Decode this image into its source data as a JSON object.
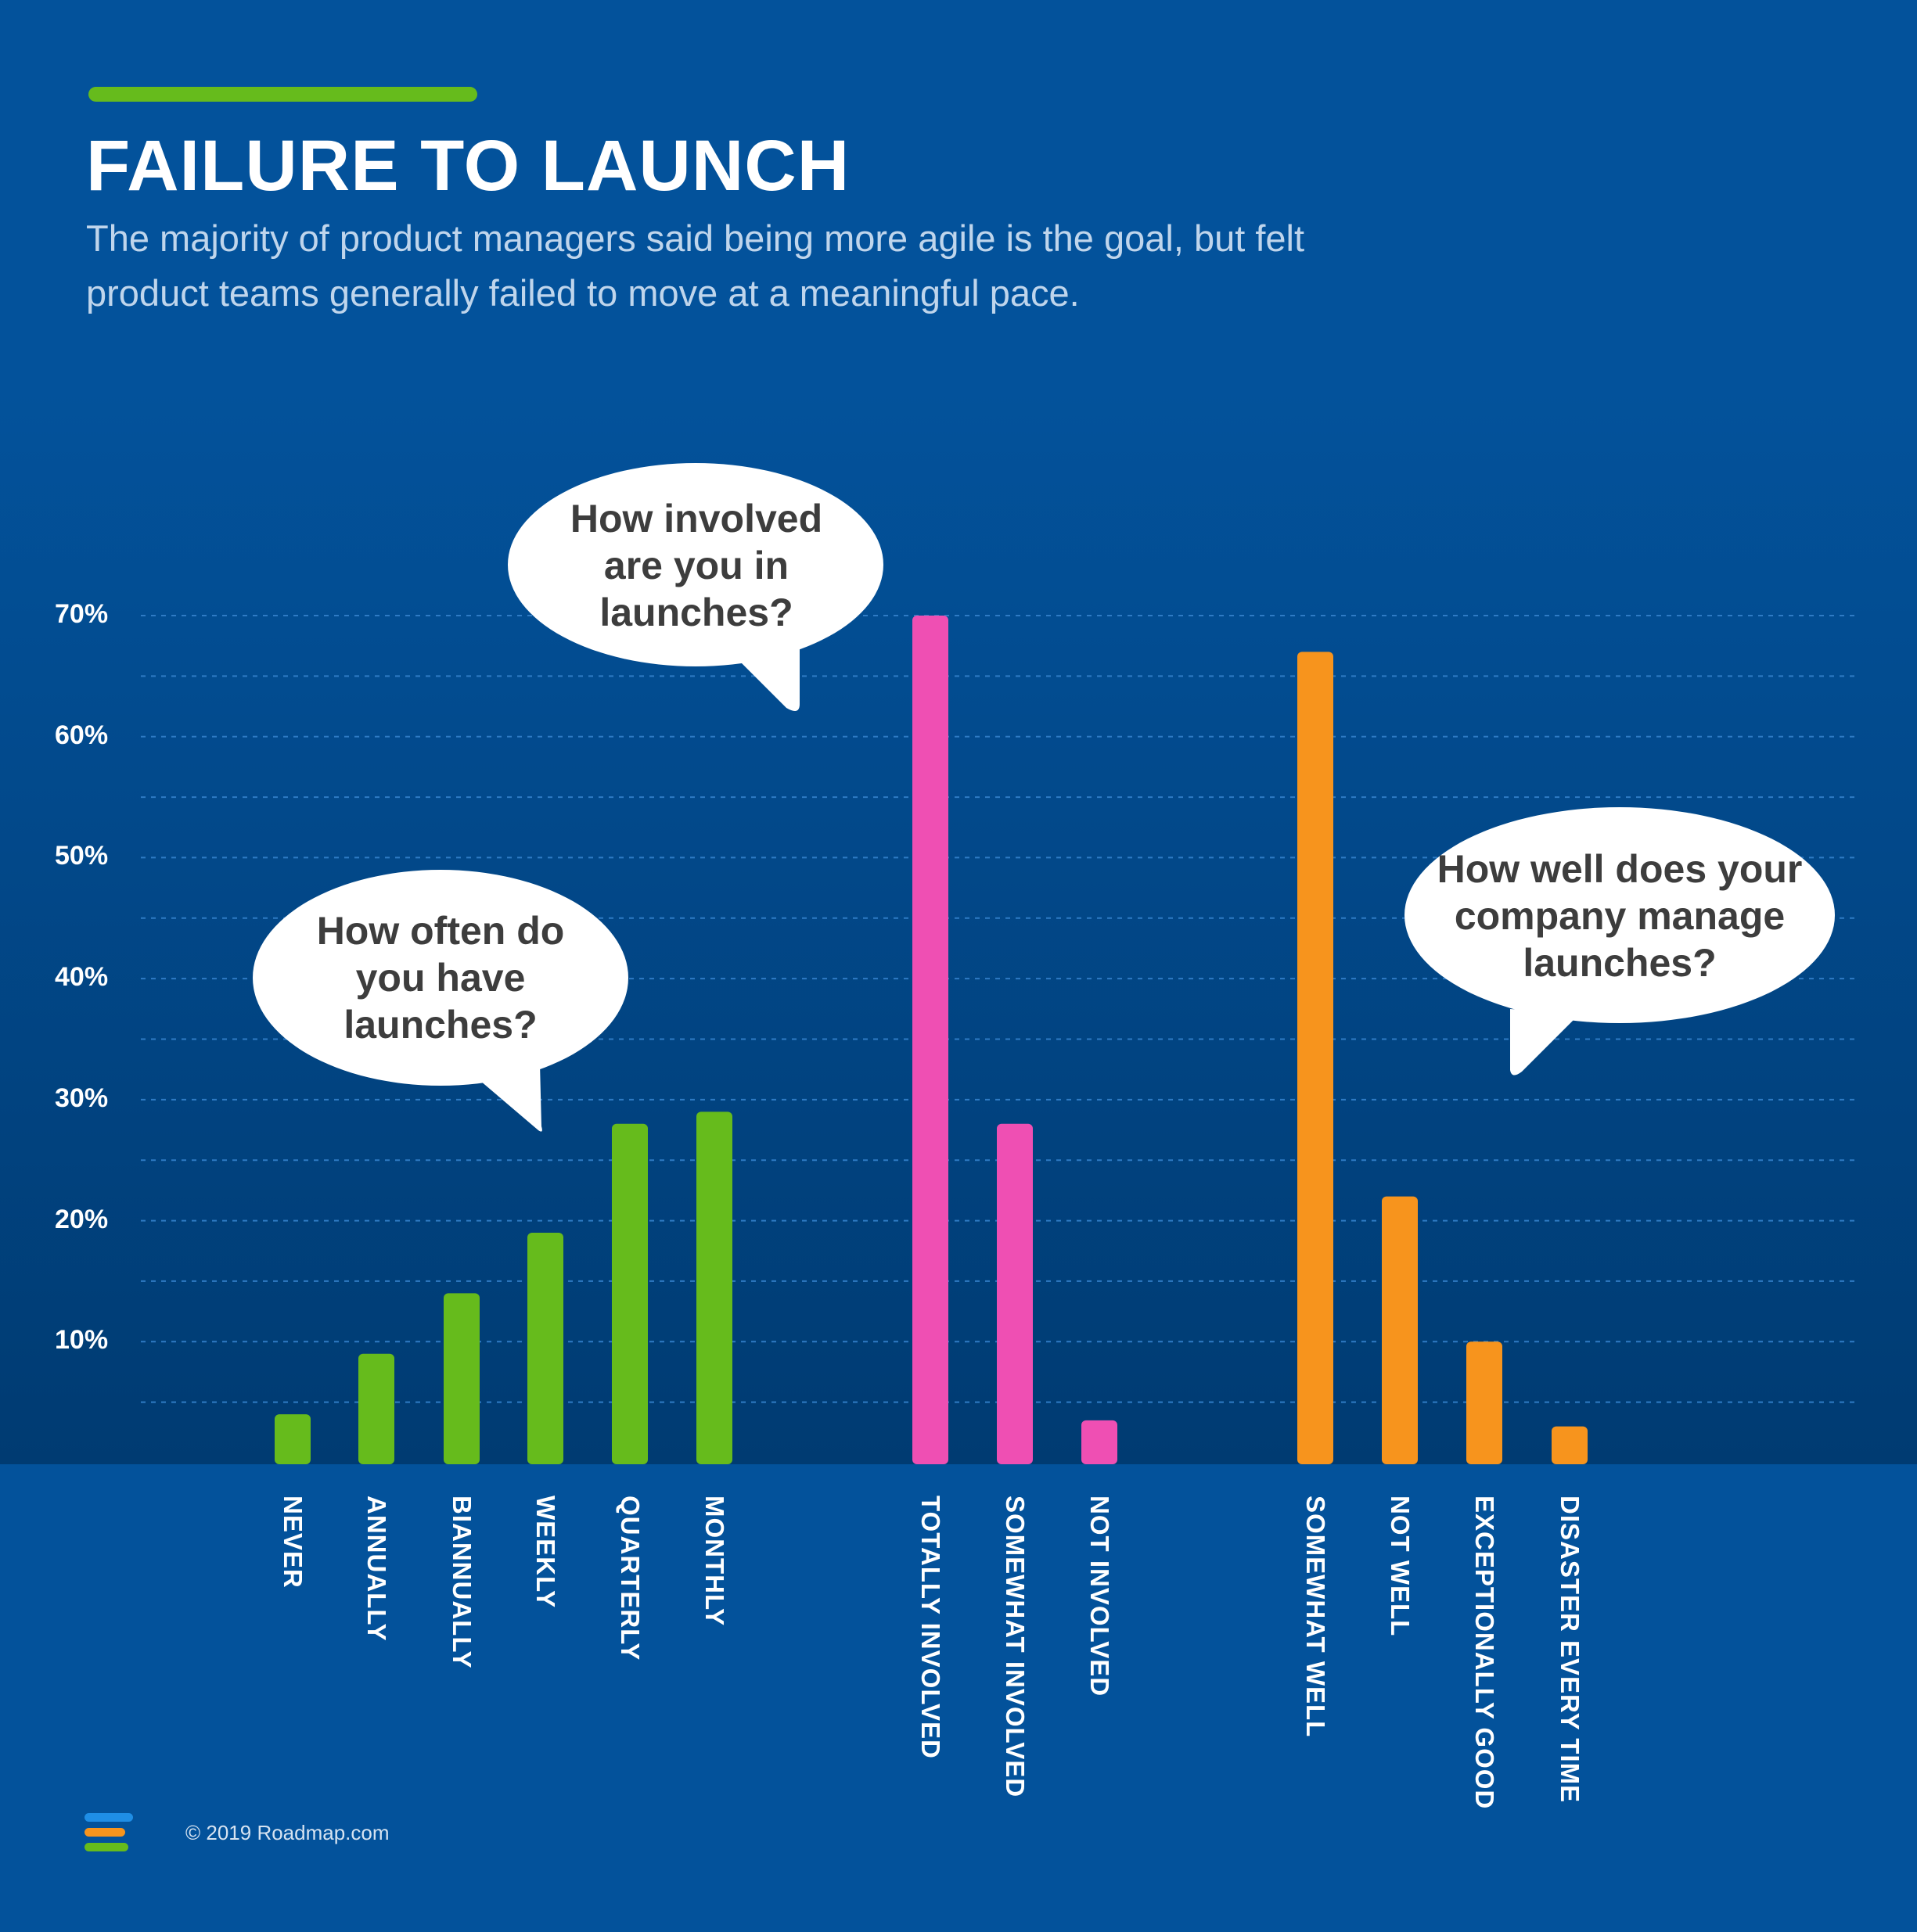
{
  "header": {
    "title": "FAILURE TO LAUNCH",
    "subtitle": "The majority of product managers said being more agile is the goal, but felt product teams generally failed to move at a meaningful pace."
  },
  "colors": {
    "background": "#03529b",
    "accent": "#66bb1c",
    "green": "#66bb1c",
    "pink": "#ef4fb3",
    "orange": "#f7941d"
  },
  "bubbles": [
    {
      "id": "often",
      "text": "How often do you have launches?"
    },
    {
      "id": "involved",
      "text": "How involved are you in launches?"
    },
    {
      "id": "manage",
      "text": "How well does your company manage launches?"
    }
  ],
  "chart_data": {
    "type": "bar",
    "ylim": [
      0,
      70
    ],
    "y_ticks": [
      10,
      20,
      30,
      40,
      50,
      60,
      70
    ],
    "y_tick_labels": [
      "10%",
      "20%",
      "30%",
      "40%",
      "50%",
      "60%",
      "70%"
    ],
    "grid": true,
    "groups": [
      {
        "question": "How often do you have launches?",
        "color": "#66bb1c",
        "categories": [
          "NEVER",
          "ANNUALLY",
          "BIANNUALLY",
          "WEEKLY",
          "QUARTERLY",
          "MONTHLY"
        ],
        "values": [
          4,
          9,
          14,
          19,
          28,
          29
        ]
      },
      {
        "question": "How involved are you in launches?",
        "color": "#ef4fb3",
        "categories": [
          "TOTALLY INVOLVED",
          "SOMEWHAT INVOLVED",
          "NOT INVOLVED"
        ],
        "values": [
          70,
          28,
          3.5
        ]
      },
      {
        "question": "How well does your company manage launches?",
        "color": "#f7941d",
        "categories": [
          "SOMEWHAT WELL",
          "NOT WELL",
          "EXCEPTIONALLY GOOD",
          "DISASTER EVERY TIME"
        ],
        "values": [
          67,
          22,
          10,
          3
        ]
      }
    ]
  },
  "footer": {
    "copyright": "© 2019 Roadmap.com",
    "logo_colors": [
      "#1f8ee6",
      "#f7941d",
      "#66bb1c"
    ]
  }
}
